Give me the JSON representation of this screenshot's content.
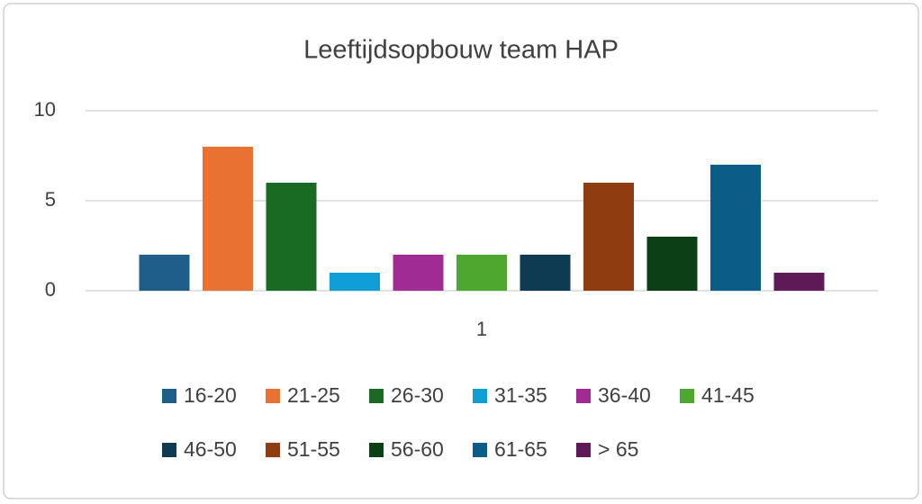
{
  "chart_data": {
    "type": "bar",
    "title": "Leeftijdsopbouw team HAP",
    "categories": [
      "1"
    ],
    "series": [
      {
        "name": "16-20",
        "color": "#1f5f87",
        "values": [
          2
        ]
      },
      {
        "name": "21-25",
        "color": "#e97132",
        "values": [
          8
        ]
      },
      {
        "name": "26-30",
        "color": "#196b24",
        "values": [
          6
        ]
      },
      {
        "name": "31-35",
        "color": "#0f9ed5",
        "values": [
          1
        ]
      },
      {
        "name": "36-40",
        "color": "#a02b93",
        "values": [
          2
        ]
      },
      {
        "name": "41-45",
        "color": "#4ea72e",
        "values": [
          2
        ]
      },
      {
        "name": "46-50",
        "color": "#0e3a52",
        "values": [
          2
        ]
      },
      {
        "name": "51-55",
        "color": "#8f3d10",
        "values": [
          6
        ]
      },
      {
        "name": "56-60",
        "color": "#0c3f13",
        "values": [
          3
        ]
      },
      {
        "name": "61-65",
        "color": "#0b5d87",
        "values": [
          7
        ]
      },
      {
        "name": "> 65",
        "color": "#5e1a57",
        "values": [
          1
        ]
      }
    ],
    "ylim": [
      0,
      10
    ],
    "yticks": [
      0,
      5,
      10
    ],
    "grid": true,
    "legend": "bottom"
  }
}
